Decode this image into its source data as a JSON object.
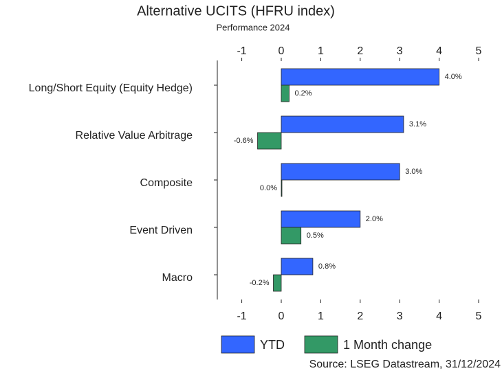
{
  "chart_data": {
    "type": "barh",
    "title": "Alternative UCITS (HFRU index)",
    "subtitle": "Performance 2024",
    "source": "Source: LSEG Datastream, 31/12/2024",
    "categories": [
      "Long/Short Equity (Equity Hedge)",
      "Relative Value Arbitrage",
      "Composite",
      "Event Driven",
      "Macro"
    ],
    "series": [
      {
        "name": "YTD",
        "color": "#3366ff",
        "values": [
          4.0,
          3.1,
          3.0,
          2.0,
          0.8
        ],
        "value_labels": [
          "4.0%",
          "3.1%",
          "3.0%",
          "2.0%",
          "0.8%"
        ]
      },
      {
        "name": "1 Month change",
        "color": "#339966",
        "values": [
          0.2,
          -0.6,
          0.0,
          0.5,
          -0.2
        ],
        "value_labels": [
          "0.2%",
          "-0.6%",
          "0.0%",
          "0.5%",
          "-0.2%"
        ]
      }
    ],
    "xlim": [
      -1.62,
      5
    ],
    "xticks": [
      -1,
      0,
      1,
      2,
      3,
      4,
      5
    ],
    "legend": "bottom"
  }
}
